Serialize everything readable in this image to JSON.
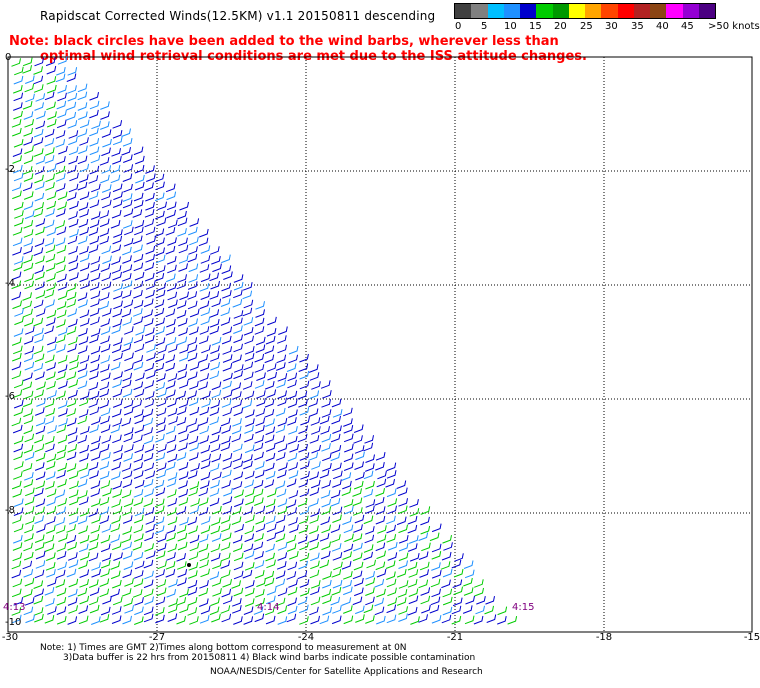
{
  "header": {
    "title": "Rapidscat Corrected Winds(12.5KM) v1.1 20150811 descending",
    "note_line1": "Note: black circles have been added to the wind barbs, wherever less than",
    "note_line2": "optimal wind retrieval conditions are met due to the ISS attitude changes."
  },
  "legend": {
    "labels": [
      "0",
      "5",
      "10",
      "15",
      "20",
      "25",
      "30",
      "35",
      "40",
      "45",
      ">50 knots"
    ],
    "colors": [
      "#404040",
      "#808080",
      "#00bfff",
      "#1e90ff",
      "#0000cd",
      "#00cc00",
      "#009900",
      "#ffff00",
      "#ffa500",
      "#ff4500",
      "#ff0000",
      "#b22222",
      "#8b4513",
      "#ff00ff",
      "#9400d3",
      "#4b0082"
    ]
  },
  "map": {
    "lon_ticks": [
      "-30",
      "-27",
      "-24",
      "-21",
      "-18",
      "-15"
    ],
    "lat_ticks": [
      "0",
      "-2",
      "-4",
      "-6",
      "-8",
      "-10"
    ],
    "time_labels": [
      "4:13",
      "4:14",
      "4:15"
    ],
    "time_color": "#800080",
    "barb_colors": {
      "low": "#0000cd",
      "mid": "#1e90ff",
      "high": "#00cc00"
    }
  },
  "footer": {
    "line1": "Note: 1) Times are GMT 2)Times along bottom correspond to measurement at 0N",
    "line2": "3)Data buffer is 22 hrs from 20150811 4) Black wind barbs indicate possible contamination",
    "credit": "NOAA/NESDIS/Center for Satellite Applications and Research"
  }
}
